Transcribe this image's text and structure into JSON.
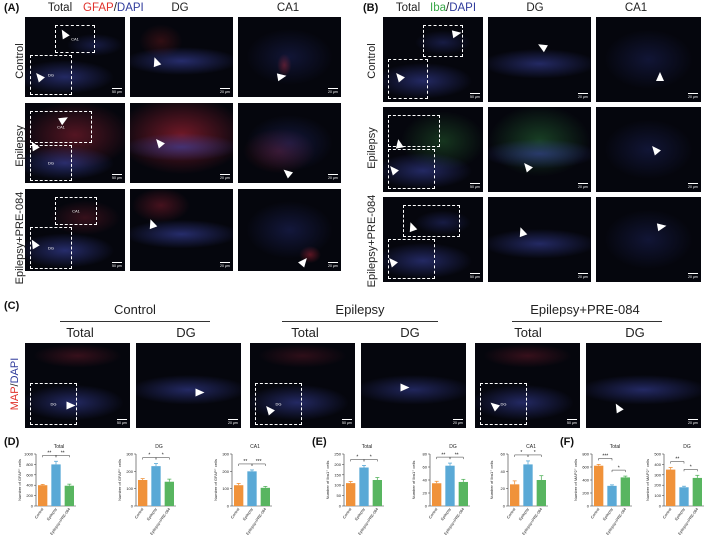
{
  "panel_labels": {
    "A": "(A)",
    "B": "(B)",
    "C": "(C)",
    "D": "(D)",
    "E": "(E)",
    "F": "(F)"
  },
  "panelA": {
    "col_total": "Total",
    "marker": "GFAP",
    "slash": "/",
    "dapi": "DAPI",
    "col_dg": "DG",
    "col_ca1": "CA1",
    "rows": [
      "Control",
      "Epilepsy",
      "Epilepsy+PRE-084"
    ]
  },
  "panelB": {
    "col_total": "Total",
    "marker": "Iba",
    "slash": "/",
    "dapi": "DAPI",
    "col_dg": "DG",
    "col_ca1": "CA1",
    "rows": [
      "Control",
      "Epilepsy",
      "Epilepsy+PRE-084"
    ]
  },
  "panelC": {
    "groups": [
      "Control",
      "Epilepsy",
      "Epilepsy+PRE-084"
    ],
    "sub": [
      "Total",
      "DG"
    ],
    "marker": "MAP",
    "slash": "/",
    "dapi": "DAPI"
  },
  "micro": {
    "box_ca1": "CA1",
    "box_dg": "DG",
    "scale": "50 μm",
    "scale2": "20 μm"
  },
  "colors": {
    "control": "#f0923a",
    "epilepsy": "#5aa9d6",
    "pre084": "#58b560",
    "gfap": "#e0312b",
    "dapi": "#2f3b9c",
    "iba": "#3aa84a"
  },
  "chart_data": [
    {
      "panel": "D",
      "type": "bar",
      "title": "Total",
      "ylabel": "Number of GFAP⁺ cells",
      "categories": [
        "Control",
        "Epilepsy",
        "Epilepsy+PRE-084"
      ],
      "values": [
        400,
        800,
        390
      ],
      "errors": [
        15,
        60,
        30
      ],
      "ylim": [
        0,
        1000
      ],
      "yticks": [
        0,
        200,
        400,
        600,
        800,
        1000
      ],
      "sig": [
        {
          "pair": [
            0,
            1
          ],
          "label": "**"
        },
        {
          "pair": [
            1,
            2
          ],
          "label": "**"
        }
      ]
    },
    {
      "panel": "D",
      "type": "bar",
      "title": "DG",
      "ylabel": "Number of GFAP⁺ cells",
      "categories": [
        "Control",
        "Epilepsy",
        "Epilepsy+PRE-084"
      ],
      "values": [
        150,
        230,
        140
      ],
      "errors": [
        8,
        15,
        15
      ],
      "ylim": [
        0,
        300
      ],
      "yticks": [
        0,
        100,
        200,
        300
      ],
      "sig": [
        {
          "pair": [
            0,
            1
          ],
          "label": "*"
        },
        {
          "pair": [
            1,
            2
          ],
          "label": "*"
        }
      ]
    },
    {
      "panel": "D",
      "type": "bar",
      "title": "CA1",
      "ylabel": "Number of GFAP⁺ cells",
      "categories": [
        "Control",
        "Epilepsy",
        "Epilepsy+PRE-084"
      ],
      "values": [
        120,
        200,
        105
      ],
      "errors": [
        10,
        8,
        8
      ],
      "ylim": [
        0,
        300
      ],
      "yticks": [
        0,
        100,
        200,
        300
      ],
      "sig": [
        {
          "pair": [
            0,
            1
          ],
          "label": "**"
        },
        {
          "pair": [
            1,
            2
          ],
          "label": "***"
        }
      ]
    },
    {
      "panel": "E",
      "type": "bar",
      "title": "Total",
      "ylabel": "Number of Iba1⁺ cells",
      "categories": [
        "Control",
        "Epilepsy",
        "Epilepsy+PRE-084"
      ],
      "values": [
        110,
        185,
        125
      ],
      "errors": [
        8,
        10,
        12
      ],
      "ylim": [
        0,
        250
      ],
      "yticks": [
        0,
        50,
        100,
        150,
        200,
        250
      ],
      "sig": [
        {
          "pair": [
            0,
            1
          ],
          "label": "*"
        },
        {
          "pair": [
            1,
            2
          ],
          "label": "*"
        }
      ]
    },
    {
      "panel": "E",
      "type": "bar",
      "title": "DG",
      "ylabel": "Number of Iba1⁺ cells",
      "categories": [
        "Control",
        "Epilepsy",
        "Epilepsy+PRE-084"
      ],
      "values": [
        35,
        62,
        37
      ],
      "errors": [
        3,
        4,
        4
      ],
      "ylim": [
        0,
        80
      ],
      "yticks": [
        0,
        20,
        40,
        60,
        80
      ],
      "sig": [
        {
          "pair": [
            0,
            1
          ],
          "label": "**"
        },
        {
          "pair": [
            1,
            2
          ],
          "label": "**"
        }
      ]
    },
    {
      "panel": "E",
      "type": "bar",
      "title": "CA1",
      "ylabel": "Number of Iba1⁺ cells",
      "categories": [
        "Control",
        "Epilepsy",
        "Epilepsy+PRE-084"
      ],
      "values": [
        25,
        48,
        30
      ],
      "errors": [
        4,
        4,
        5
      ],
      "ylim": [
        0,
        60
      ],
      "yticks": [
        0,
        20,
        40,
        60
      ],
      "sig": [
        {
          "pair": [
            0,
            1
          ],
          "label": "*"
        },
        {
          "pair": [
            1,
            2
          ],
          "label": "*"
        }
      ]
    },
    {
      "panel": "F",
      "type": "bar",
      "title": "Total",
      "ylabel": "Number of MAP2⁺ cells",
      "categories": [
        "Control",
        "Epilepsy",
        "Epilepsy+PRE-084"
      ],
      "values": [
        620,
        310,
        440
      ],
      "errors": [
        20,
        15,
        20
      ],
      "ylim": [
        0,
        800
      ],
      "yticks": [
        0,
        200,
        400,
        600,
        800
      ],
      "sig": [
        {
          "pair": [
            0,
            1
          ],
          "label": "***"
        },
        {
          "pair": [
            1,
            2
          ],
          "label": "*"
        }
      ]
    },
    {
      "panel": "F",
      "type": "bar",
      "title": "DG",
      "ylabel": "Number of MAP2⁺ cells",
      "categories": [
        "Control",
        "Epilepsy",
        "Epilepsy+PRE-084"
      ],
      "values": [
        350,
        180,
        270
      ],
      "errors": [
        20,
        10,
        25
      ],
      "ylim": [
        0,
        500
      ],
      "yticks": [
        0,
        100,
        200,
        300,
        400,
        500
      ],
      "sig": [
        {
          "pair": [
            0,
            1
          ],
          "label": "**"
        },
        {
          "pair": [
            1,
            2
          ],
          "label": "*"
        }
      ]
    }
  ]
}
